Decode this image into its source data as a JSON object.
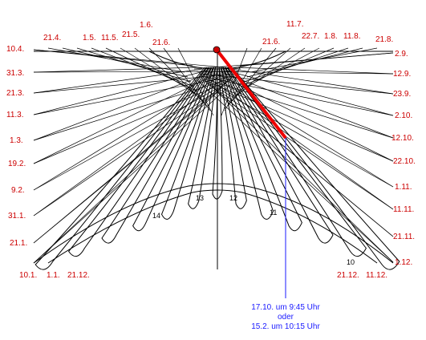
{
  "colors": {
    "date_label": "#cc0000",
    "pointer": "#ee0000",
    "reading": "#0000cc",
    "lines": "#000000"
  },
  "left_dates": [
    "10.4.",
    "31.3.",
    "21.3.",
    "11.3.",
    "1.3.",
    "19.2.",
    "9.2.",
    "31.1.",
    "21.1."
  ],
  "right_dates": [
    "2.9.",
    "12.9.",
    "23.9.",
    "2.10.",
    "12.10.",
    "22.10.",
    "1.11.",
    "11.11.",
    "21.11.",
    "1.12."
  ],
  "top_left_dates": [
    "21.4.",
    "1.5.",
    "11.5.",
    "21.5.",
    "1.6.",
    "21.6."
  ],
  "top_right_dates": [
    "21.6.",
    "11.7.",
    "22.7.",
    "1.8.",
    "11.8.",
    "21.8."
  ],
  "bottom_left_dates": [
    "10.1.",
    "1.1.",
    "21.12."
  ],
  "bottom_right_dates": [
    "21.12.",
    "11.12."
  ],
  "hour_labels": [
    "14",
    "13",
    "12",
    "11",
    "10"
  ],
  "reading": [
    "17.10. um 9:45 Uhr",
    "oder",
    "15.2. um 10:15 Uhr"
  ]
}
